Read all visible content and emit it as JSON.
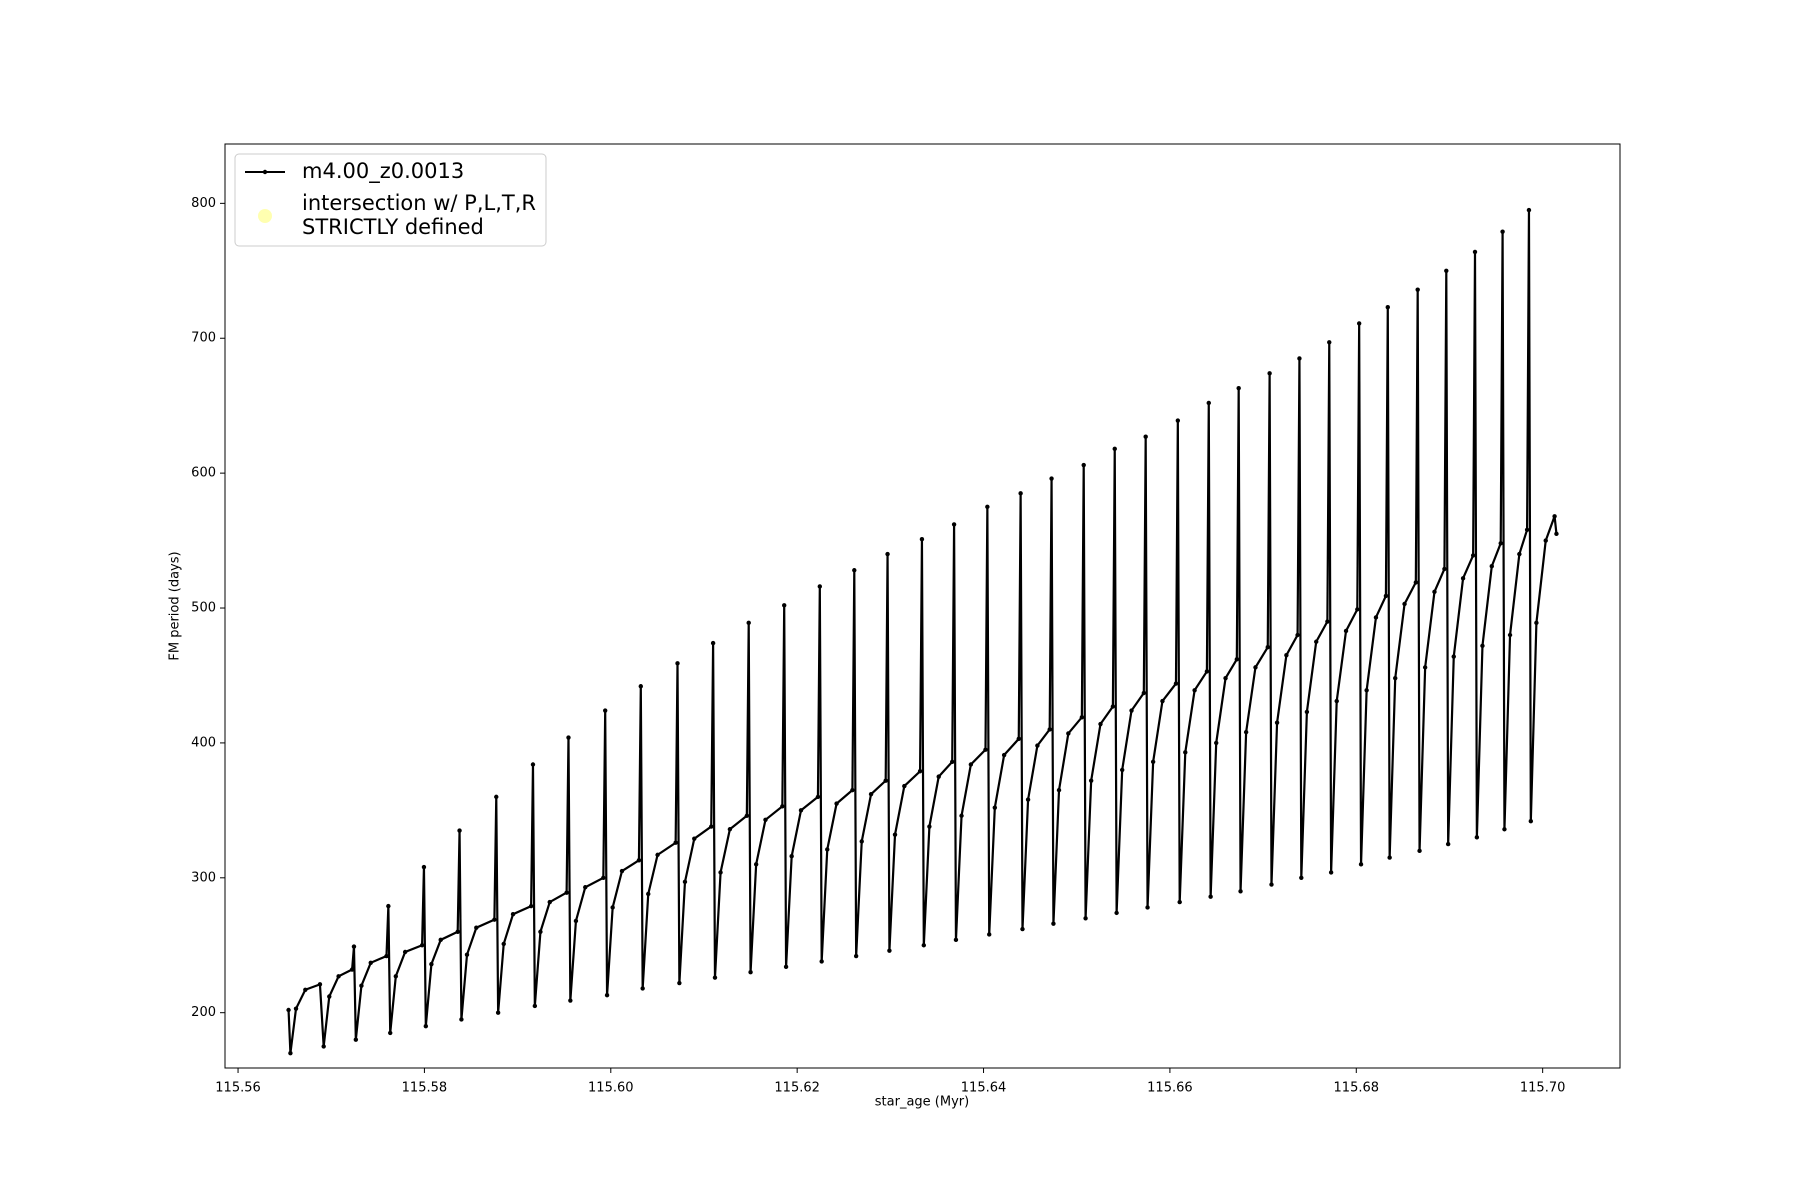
{
  "chart_data": {
    "type": "line",
    "xlabel": "star_age (Myr)",
    "ylabel": "FM period (days)",
    "xlim": [
      115.5586,
      115.7083
    ],
    "ylim": [
      159,
      844
    ],
    "xticks": [
      115.56,
      115.58,
      {
        "value": 115.6,
        "label": "115.60"
      },
      115.62,
      115.64,
      115.66,
      115.68,
      {
        "value": 115.7,
        "label": "115.70"
      }
    ],
    "yticks": [
      200,
      300,
      400,
      500,
      600,
      700,
      800
    ],
    "grid": false,
    "legend": "upper left",
    "series": [
      {
        "name": "m4.00_z0.0013",
        "color": "#000000",
        "marker": true,
        "x": [
          115.56542,
          115.56562,
          115.56622,
          115.56722,
          115.56879,
          115.56919,
          115.56979,
          115.57079,
          115.57224,
          115.57244,
          115.57264,
          115.57324,
          115.57424,
          115.57593,
          115.57613,
          115.57633,
          115.57693,
          115.57793,
          115.57975,
          115.57995,
          115.58015,
          115.58075,
          115.58175,
          115.58357,
          115.58377,
          115.58397,
          115.58457,
          115.58557,
          115.58751,
          115.58771,
          115.58791,
          115.58851,
          115.58951,
          115.59145,
          115.59165,
          115.59185,
          115.59245,
          115.59345,
          115.59526,
          115.59546,
          115.59566,
          115.59626,
          115.59726,
          115.5992,
          115.5994,
          115.5996,
          115.6002,
          115.6012,
          115.60302,
          115.60322,
          115.60342,
          115.60402,
          115.60502,
          115.60696,
          115.60716,
          115.60736,
          115.60796,
          115.60896,
          115.61078,
          115.61098,
          115.61118,
          115.61178,
          115.61278,
          115.6146,
          115.6148,
          115.615,
          115.6156,
          115.6166,
          115.61841,
          115.61861,
          115.61881,
          115.61941,
          115.62041,
          115.62223,
          115.62243,
          115.62263,
          115.62323,
          115.62423,
          115.62593,
          115.62613,
          115.62633,
          115.62693,
          115.62793,
          115.6295,
          115.6297,
          115.6299,
          115.6305,
          115.6315,
          115.63319,
          115.63339,
          115.63359,
          115.63419,
          115.63519,
          115.63664,
          115.63684,
          115.63704,
          115.63764,
          115.63864,
          115.64021,
          115.64041,
          115.64061,
          115.64121,
          115.64221,
          115.64378,
          115.64398,
          115.64418,
          115.64478,
          115.64578,
          115.6471,
          115.6473,
          115.6475,
          115.6481,
          115.6491,
          115.65055,
          115.65075,
          115.65095,
          115.65155,
          115.65255,
          115.65388,
          115.65408,
          115.65428,
          115.65488,
          115.65588,
          115.6572,
          115.6574,
          115.6576,
          115.6582,
          115.6592,
          115.66065,
          115.66085,
          115.66105,
          115.66165,
          115.66265,
          115.66397,
          115.66417,
          115.66437,
          115.66497,
          115.66597,
          115.66718,
          115.66738,
          115.66758,
          115.66818,
          115.66918,
          115.6705,
          115.6707,
          115.6709,
          115.6715,
          115.6725,
          115.6737,
          115.6739,
          115.6741,
          115.6747,
          115.6757,
          115.6769,
          115.6771,
          115.6773,
          115.6779,
          115.6789,
          115.68011,
          115.68031,
          115.68051,
          115.68111,
          115.68211,
          115.68318,
          115.68338,
          115.68358,
          115.68418,
          115.68518,
          115.68639,
          115.68659,
          115.68679,
          115.68739,
          115.68839,
          115.68946,
          115.68966,
          115.68986,
          115.69046,
          115.69146,
          115.69254,
          115.69274,
          115.69294,
          115.69354,
          115.69454,
          115.6955,
          115.6957,
          115.6959,
          115.6965,
          115.6975,
          115.69833,
          115.69853,
          115.69873,
          115.69933,
          115.70033,
          115.70128,
          115.70148
        ],
        "values": [
          202,
          170,
          203,
          217,
          221,
          175,
          212,
          227,
          232,
          249,
          180,
          220,
          237,
          242,
          279,
          185,
          227,
          245,
          250,
          308,
          190,
          236,
          254,
          260,
          335,
          195,
          243,
          263,
          269,
          360,
          200,
          251,
          273,
          279,
          384,
          205,
          260,
          282,
          289,
          404,
          209,
          268,
          293,
          300,
          424,
          213,
          278,
          305,
          313,
          442,
          218,
          288,
          317,
          326,
          459,
          222,
          297,
          329,
          338,
          474,
          226,
          304,
          336,
          346,
          489,
          230,
          310,
          343,
          353,
          502,
          234,
          316,
          350,
          360,
          516,
          238,
          321,
          355,
          365,
          528,
          242,
          327,
          362,
          372,
          540,
          246,
          332,
          368,
          379,
          551,
          250,
          338,
          375,
          386,
          562,
          254,
          346,
          384,
          395,
          575,
          258,
          352,
          391,
          403,
          585,
          262,
          358,
          398,
          410,
          596,
          266,
          365,
          407,
          419,
          606,
          270,
          372,
          414,
          427,
          618,
          274,
          380,
          424,
          437,
          627,
          278,
          386,
          431,
          444,
          639,
          282,
          393,
          439,
          453,
          652,
          286,
          400,
          448,
          462,
          663,
          290,
          408,
          456,
          471,
          674,
          295,
          415,
          465,
          480,
          685,
          300,
          423,
          475,
          490,
          697,
          304,
          431,
          483,
          499,
          711,
          310,
          439,
          493,
          509,
          723,
          315,
          448,
          503,
          519,
          736,
          320,
          456,
          512,
          529,
          750,
          325,
          464,
          522,
          539,
          764,
          330,
          472,
          531,
          548,
          779,
          336,
          480,
          540,
          558,
          795,
          342,
          489,
          550,
          568,
          555
        ]
      },
      {
        "name": "intersection w/ P,L,T,R\nSTRICTLY defined",
        "color": "#ffffb0",
        "type": "scatter",
        "x": [],
        "values": []
      }
    ]
  }
}
